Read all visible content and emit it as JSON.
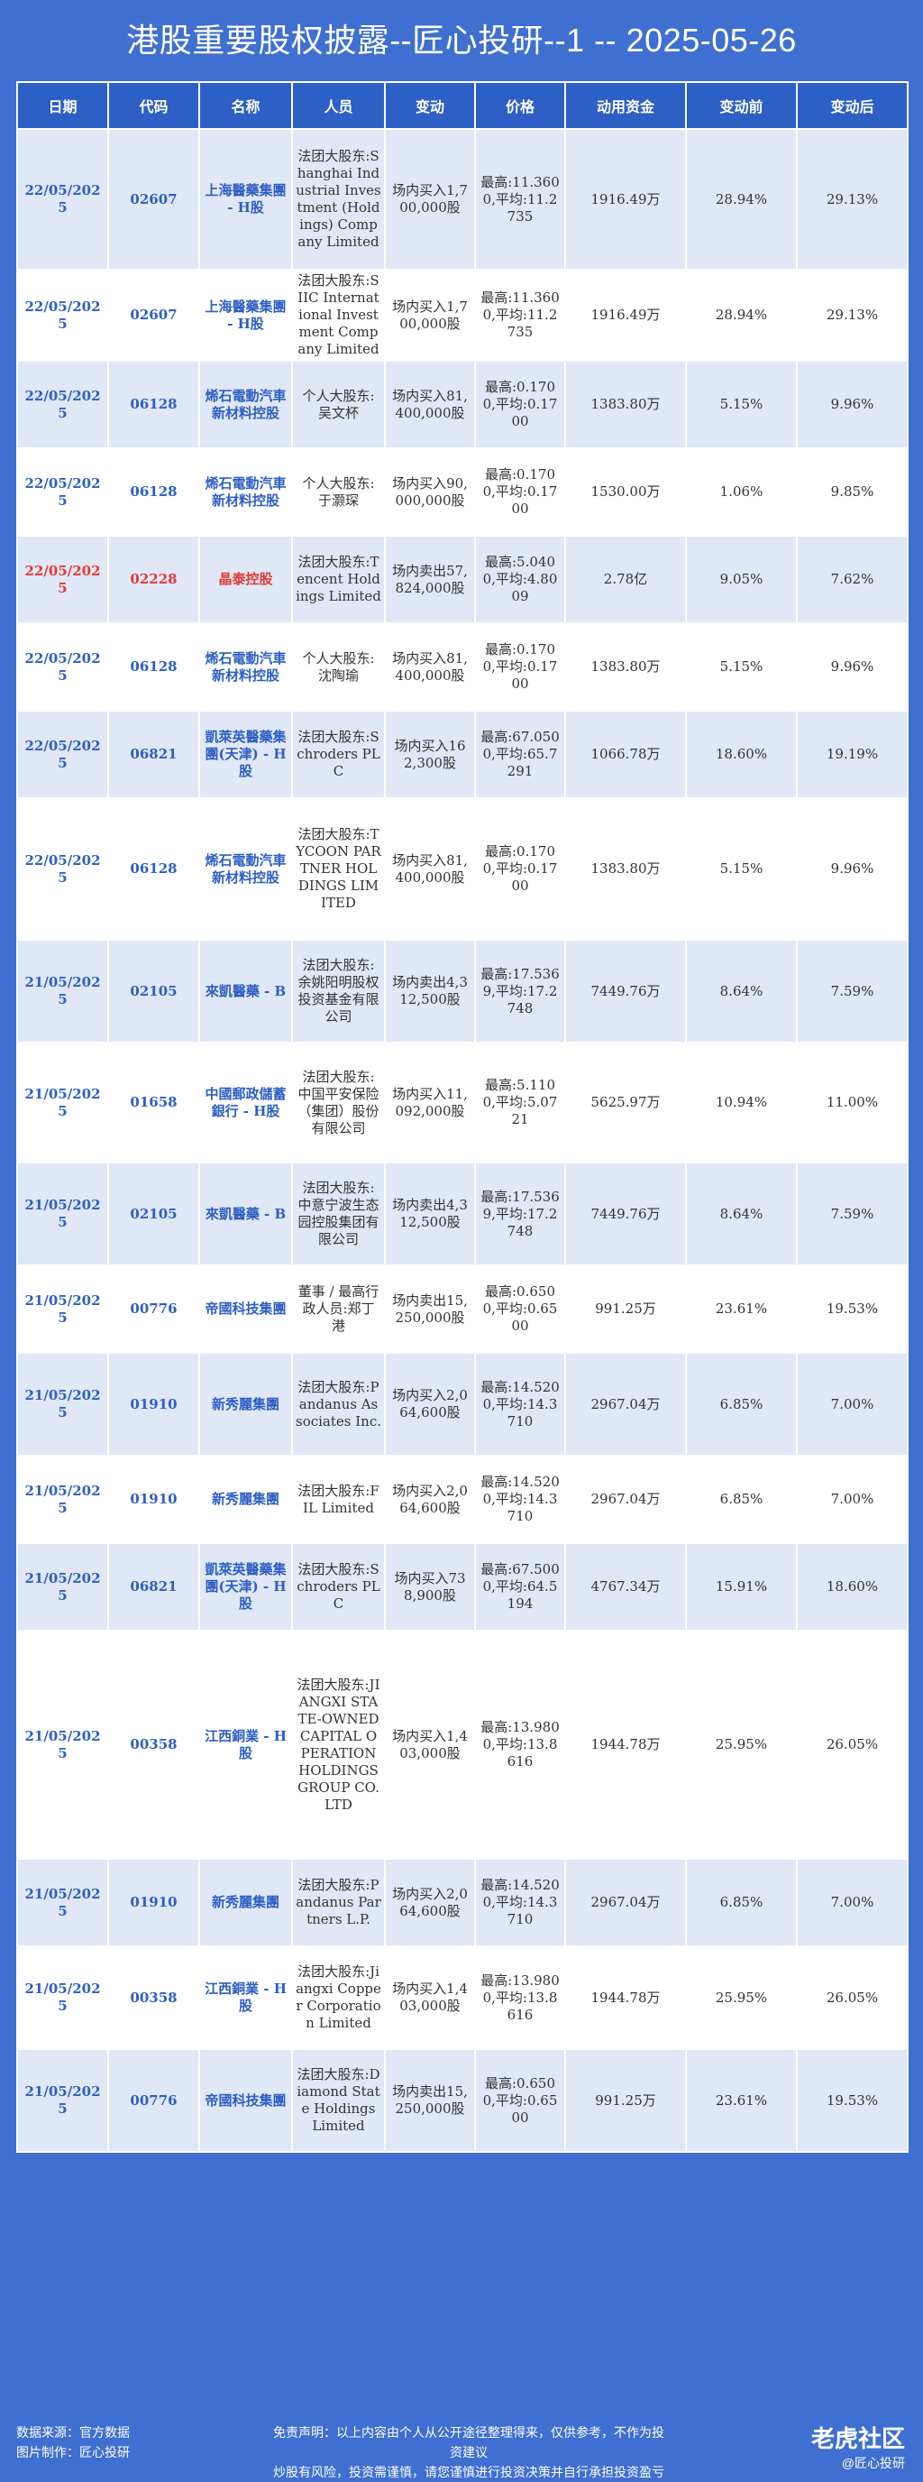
{
  "title": "港股重要股权披露--匠心投研--1 -- 2025-05-26",
  "columns": [
    "日期",
    "代码",
    "名称",
    "人员",
    "变动",
    "价格",
    "动用资金",
    "变动前",
    "变动后"
  ],
  "rows": [
    {
      "date": "22/05/2025",
      "code": "02607",
      "name": "上海醫藥集團 - H股",
      "person": "法团大股东:Shanghai Industrial Investment (Holdings) Company Limited",
      "change": "场内买入1,700,000股",
      "price": "最高:11.3600,平均:11.2735",
      "funds": "1916.49万",
      "before": "28.94%",
      "after": "29.13%",
      "hl": false
    },
    {
      "date": "22/05/2025",
      "code": "02607",
      "name": "上海醫藥集團 - H股",
      "person": "法团大股东:SIIC International Investment Company Limited",
      "change": "场内买入1,700,000股",
      "price": "最高:11.3600,平均:11.2735",
      "funds": "1916.49万",
      "before": "28.94%",
      "after": "29.13%",
      "hl": false
    },
    {
      "date": "22/05/2025",
      "code": "06128",
      "name": "烯石電動汽車新材料控股",
      "person": "个人大股东:吴文杯",
      "change": "场内买入81,400,000股",
      "price": "最高:0.1700,平均:0.1700",
      "funds": "1383.80万",
      "before": "5.15%",
      "after": "9.96%",
      "hl": false
    },
    {
      "date": "22/05/2025",
      "code": "06128",
      "name": "烯石電動汽車新材料控股",
      "person": "个人大股东:于灏琛",
      "change": "场内买入90,000,000股",
      "price": "最高:0.1700,平均:0.1700",
      "funds": "1530.00万",
      "before": "1.06%",
      "after": "9.85%",
      "hl": false
    },
    {
      "date": "22/05/2025",
      "code": "02228",
      "name": "晶泰控股",
      "person": "法团大股东:Tencent Holdings Limited",
      "change": "场内卖出57,824,000股",
      "price": "最高:5.0400,平均:4.8009",
      "funds": "2.78亿",
      "before": "9.05%",
      "after": "7.62%",
      "hl": true
    },
    {
      "date": "22/05/2025",
      "code": "06128",
      "name": "烯石電動汽車新材料控股",
      "person": "个人大股东:沈陶瑜",
      "change": "场内买入81,400,000股",
      "price": "最高:0.1700,平均:0.1700",
      "funds": "1383.80万",
      "before": "5.15%",
      "after": "9.96%",
      "hl": false
    },
    {
      "date": "22/05/2025",
      "code": "06821",
      "name": "凱萊英醫藥集團(天津) - H股",
      "person": "法团大股东:Schroders PLC",
      "change": "场内买入162,300股",
      "price": "最高:67.0500,平均:65.7291",
      "funds": "1066.78万",
      "before": "18.60%",
      "after": "19.19%",
      "hl": false
    },
    {
      "date": "22/05/2025",
      "code": "06128",
      "name": "烯石電動汽車新材料控股",
      "person": "法团大股东:TYCOON PARTNER HOLDINGS LIMITED",
      "change": "场内买入81,400,000股",
      "price": "最高:0.1700,平均:0.1700",
      "funds": "1383.80万",
      "before": "5.15%",
      "after": "9.96%",
      "hl": false
    },
    {
      "date": "21/05/2025",
      "code": "02105",
      "name": "來凱醫藥 - B",
      "person": "法团大股东:余姚阳明股权投资基金有限公司",
      "change": "场内卖出4,312,500股",
      "price": "最高:17.5369,平均:17.2748",
      "funds": "7449.76万",
      "before": "8.64%",
      "after": "7.59%",
      "hl": false
    },
    {
      "date": "21/05/2025",
      "code": "01658",
      "name": "中國郵政儲蓄銀行 - H股",
      "person": "法团大股东:中国平安保险（集团）股份有限公司",
      "change": "场内买入11,092,000股",
      "price": "最高:5.1100,平均:5.0721",
      "funds": "5625.97万",
      "before": "10.94%",
      "after": "11.00%",
      "hl": false
    },
    {
      "date": "21/05/2025",
      "code": "02105",
      "name": "來凱醫藥 - B",
      "person": "法团大股东:中意宁波生态园控股集团有限公司",
      "change": "场内卖出4,312,500股",
      "price": "最高:17.5369,平均:17.2748",
      "funds": "7449.76万",
      "before": "8.64%",
      "after": "7.59%",
      "hl": false
    },
    {
      "date": "21/05/2025",
      "code": "00776",
      "name": "帝國科技集團",
      "person": "董事 / 最高行政人员:郑丁港",
      "change": "场内卖出15,250,000股",
      "price": "最高:0.6500,平均:0.6500",
      "funds": "991.25万",
      "before": "23.61%",
      "after": "19.53%",
      "hl": false
    },
    {
      "date": "21/05/2025",
      "code": "01910",
      "name": "新秀麗集團",
      "person": "法团大股东:Pandanus Associates Inc.",
      "change": "场内买入2,064,600股",
      "price": "最高:14.5200,平均:14.3710",
      "funds": "2967.04万",
      "before": "6.85%",
      "after": "7.00%",
      "hl": false
    },
    {
      "date": "21/05/2025",
      "code": "01910",
      "name": "新秀麗集團",
      "person": "法团大股东:FIL Limited",
      "change": "场内买入2,064,600股",
      "price": "最高:14.5200,平均:14.3710",
      "funds": "2967.04万",
      "before": "6.85%",
      "after": "7.00%",
      "hl": false
    },
    {
      "date": "21/05/2025",
      "code": "06821",
      "name": "凱萊英醫藥集團(天津) - H股",
      "person": "法团大股东:Schroders PLC",
      "change": "场内买入738,900股",
      "price": "最高:67.5000,平均:64.5194",
      "funds": "4767.34万",
      "before": "15.91%",
      "after": "18.60%",
      "hl": false
    },
    {
      "date": "21/05/2025",
      "code": "00358",
      "name": "江西銅業 - H股",
      "person": "法团大股东:JIANGXI STATE-OWNED CAPITAL OPERATION HOLDINGS GROUP CO. LTD",
      "change": "场内买入1,403,000股",
      "price": "最高:13.9800,平均:13.8616",
      "funds": "1944.78万",
      "before": "25.95%",
      "after": "26.05%",
      "hl": false
    },
    {
      "date": "21/05/2025",
      "code": "01910",
      "name": "新秀麗集團",
      "person": "法团大股东:Pandanus Partners L.P.",
      "change": "场内买入2,064,600股",
      "price": "最高:14.5200,平均:14.3710",
      "funds": "2967.04万",
      "before": "6.85%",
      "after": "7.00%",
      "hl": false
    },
    {
      "date": "21/05/2025",
      "code": "00358",
      "name": "江西銅業 - H股",
      "person": "法团大股东:Jiangxi Copper Corporation Limited",
      "change": "场内买入1,403,000股",
      "price": "最高:13.9800,平均:13.8616",
      "funds": "1944.78万",
      "before": "25.95%",
      "after": "26.05%",
      "hl": false
    },
    {
      "date": "21/05/2025",
      "code": "00776",
      "name": "帝國科技集團",
      "person": "法团大股东:Diamond State Holdings Limited",
      "change": "场内卖出15,250,000股",
      "price": "最高:0.6500,平均:0.6500",
      "funds": "991.25万",
      "before": "23.61%",
      "after": "19.53%",
      "hl": false
    }
  ],
  "footer": {
    "source": "数据来源：官方数据",
    "maker": "图片制作：匠心投研",
    "disclaimer_1": "免责声明：以上内容由个人从公开途径整理得来，仅供参考，不作为投资建议",
    "disclaimer_2": "炒股有风险，投资需谨慎，请您谨慎进行投资决策并自行承担投资盈亏",
    "brand": "老虎社区",
    "brand_sub": "@匠心投研"
  }
}
